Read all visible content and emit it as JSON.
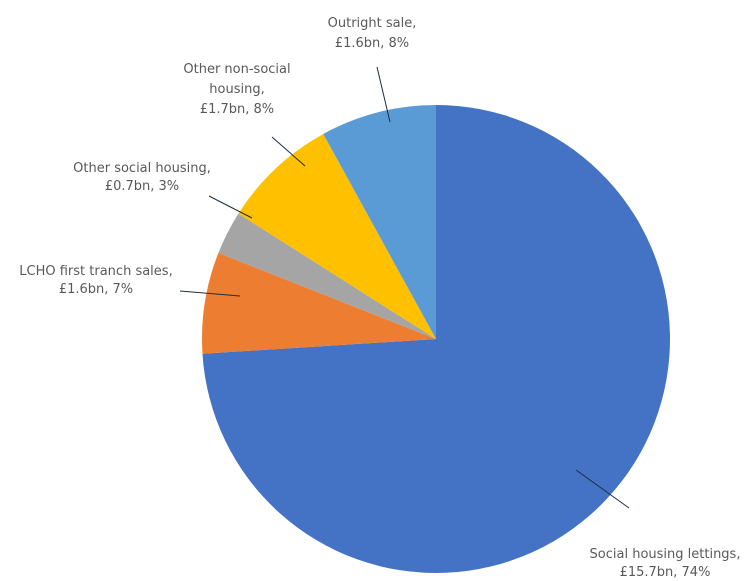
{
  "chart_data": {
    "type": "pie",
    "start_angle_deg": 0,
    "direction": "clockwise",
    "slices": [
      {
        "label": "Social housing lettings,",
        "value_text": "£15.7bn, 74%",
        "value": 15.7,
        "percent": 74,
        "color": "#4472C4"
      },
      {
        "label": "LCHO first tranch sales,",
        "value_text": "£1.6bn, 7%",
        "value": 1.6,
        "percent": 7,
        "color": "#ED7D31"
      },
      {
        "label": "Other social housing,",
        "value_text": "£0.7bn, 3%",
        "value": 0.7,
        "percent": 3,
        "color": "#A5A5A5"
      },
      {
        "label_lines": [
          "Other non-social",
          "housing,"
        ],
        "value_text": "£1.7bn, 8%",
        "value": 1.7,
        "percent": 8,
        "color": "#FFC000"
      },
      {
        "label": "Outright sale,",
        "value_text": "£1.6bn, 8%",
        "value": 1.6,
        "percent": 8,
        "color": "#5B9BD5"
      }
    ]
  }
}
